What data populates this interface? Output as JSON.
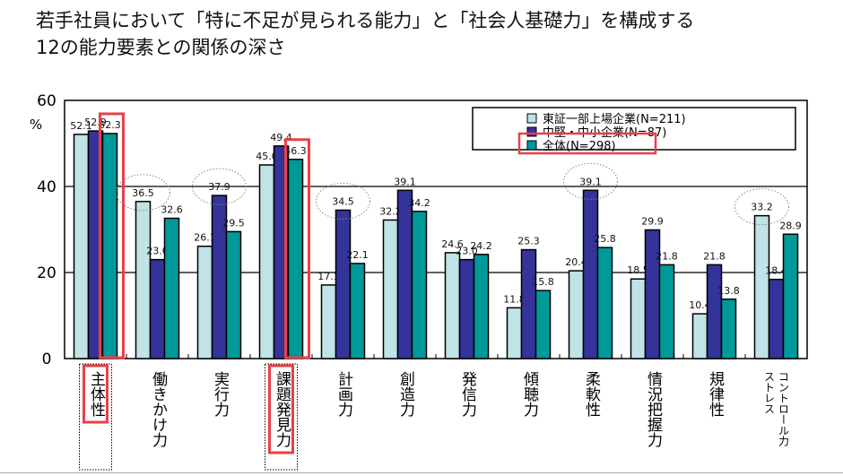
{
  "title_lines": [
    "若手社員において「特に不足が見られる能力」と「社会人基礎力」を構成する",
    "12の能力要素との関係の深さ"
  ],
  "chart_data": {
    "type": "bar",
    "title": "若手社員において「特に不足が見られる能力」と「社会人基礎力」を構成する12の能力要素との関係の深さ",
    "ylabel": "%",
    "ylim": [
      0,
      60
    ],
    "yticks": [
      "0",
      "20",
      "40",
      "60"
    ],
    "grid": true,
    "legend_position": "top-right",
    "categories": [
      "主体性",
      "働きかけ力",
      "実行力",
      "課題発見力",
      "計画力",
      "創造力",
      "発信力",
      "傾聴力",
      "柔軟性",
      "情況把握力",
      "規律性",
      "ストレスコントロール力"
    ],
    "category_display": [
      [
        "主体性"
      ],
      [
        "働きかけ力"
      ],
      [
        "実行力"
      ],
      [
        "課題発見力"
      ],
      [
        "計画力"
      ],
      [
        "創造力"
      ],
      [
        "発信力"
      ],
      [
        "傾聴力"
      ],
      [
        "柔軟性"
      ],
      [
        "情況把握力"
      ],
      [
        "規律性"
      ],
      [
        "コントロール力",
        "ストレス"
      ]
    ],
    "series": [
      {
        "name": "東証一部上場企業(N=211)",
        "color": "#bfe3e6",
        "values": [
          52.1,
          36.5,
          26.1,
          45.0,
          17.1,
          32.2,
          24.6,
          11.8,
          20.4,
          18.5,
          10.4,
          33.2
        ]
      },
      {
        "name": "中堅・中小企業(N=87)",
        "color": "#333399",
        "values": [
          52.9,
          23.0,
          37.9,
          49.4,
          34.5,
          39.1,
          23.0,
          25.3,
          39.1,
          29.9,
          21.8,
          18.4
        ]
      },
      {
        "name": "全体(N=298)",
        "color": "#009999",
        "values": [
          52.3,
          32.6,
          29.5,
          46.3,
          22.1,
          34.2,
          24.2,
          15.8,
          25.8,
          21.8,
          13.8,
          28.9
        ]
      }
    ],
    "highlighted_categories": [
      "主体性",
      "課題発見力"
    ],
    "highlighted_series": "全体(N=298)",
    "circled_values": [
      {
        "category": "働きかけ力",
        "series": 0
      },
      {
        "category": "実行力",
        "series": 1
      },
      {
        "category": "計画力",
        "series": 1
      },
      {
        "category": "柔軟性",
        "series": 1
      },
      {
        "category": "ストレスコントロール力",
        "series": 0
      }
    ],
    "highlight_color": "#e8404a"
  }
}
